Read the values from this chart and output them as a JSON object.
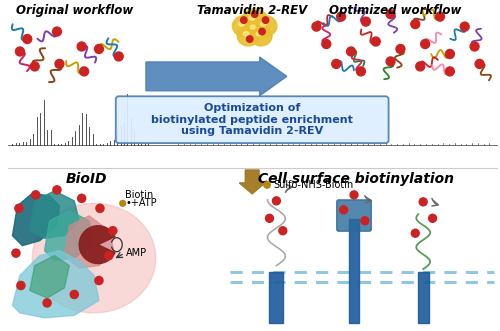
{
  "bg_color": "#ffffff",
  "top_left_label": "Original workflow",
  "top_center_label": "Tamavidin 2-REV",
  "top_right_label": "Optimized workflow",
  "arrow_center_text_line1": "Optimization of",
  "arrow_center_text_line2": "biotinylated peptide enrichment",
  "arrow_center_text_line3": "using Tamavidin 2-REV",
  "bottom_left_label": "BioID",
  "bottom_right_label": "Cell surface biotinylation",
  "bioid_label0": "Biotin",
  "bioid_label1": "•+ATP",
  "bioid_label2": "AMP",
  "sulfo_label": "Sulfo-NHS-Biotin",
  "arrow_big_color": "#4a7fb5",
  "arrow_down_color": "#a07820",
  "box_fill_color": "#ddeeff",
  "box_edge_color": "#4a7fb5",
  "red_dot_color": "#cc2222",
  "spectrum_color": "#222222",
  "pink_color": "#f5b8b8",
  "teal_dark": "#1a6a7a",
  "teal_mid": "#2a8a8a",
  "teal_light": "#5ab0b0",
  "teal_green": "#3a9a6a",
  "blue_light": "#8ad0e0",
  "enzyme_color": "#8b2020",
  "gold_dot": "#b8830a",
  "tm_blue": "#1a5a9a",
  "mem_color": "#90c8e0"
}
